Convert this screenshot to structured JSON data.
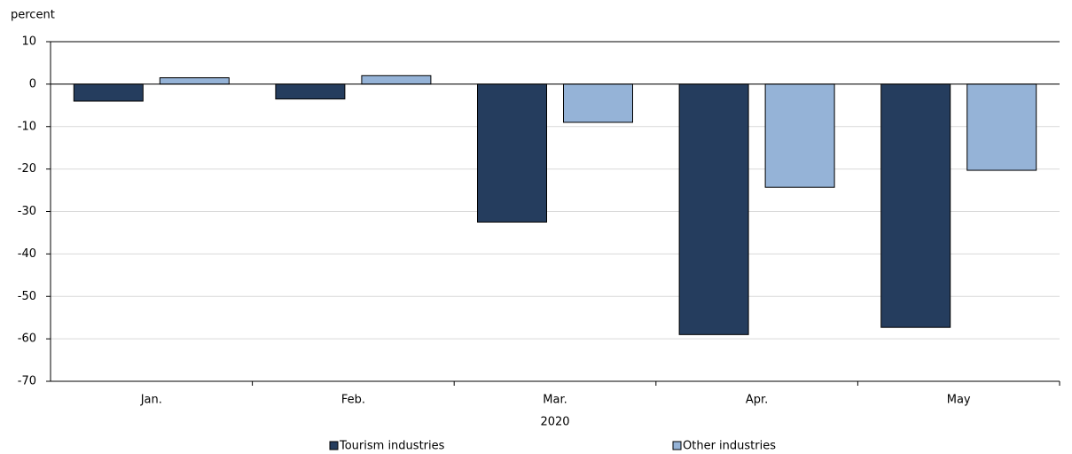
{
  "chart_data": {
    "type": "bar",
    "y_label": "percent",
    "x_label": "2020",
    "categories": [
      "Jan.",
      "Feb.",
      "Mar.",
      "Apr.",
      "May"
    ],
    "series": [
      {
        "name": "Tourism industries",
        "color": "#253d5e",
        "values": [
          -4,
          -3.5,
          -32.5,
          -59,
          -57.3
        ]
      },
      {
        "name": "Other industries",
        "color": "#95b3d7",
        "values": [
          1.5,
          2,
          -9,
          -24.3,
          -20.3
        ]
      }
    ],
    "ylim": [
      -70,
      10
    ],
    "yticks": [
      -70,
      -60,
      -50,
      -40,
      -30,
      -20,
      -10,
      0,
      10
    ],
    "grid": true
  }
}
